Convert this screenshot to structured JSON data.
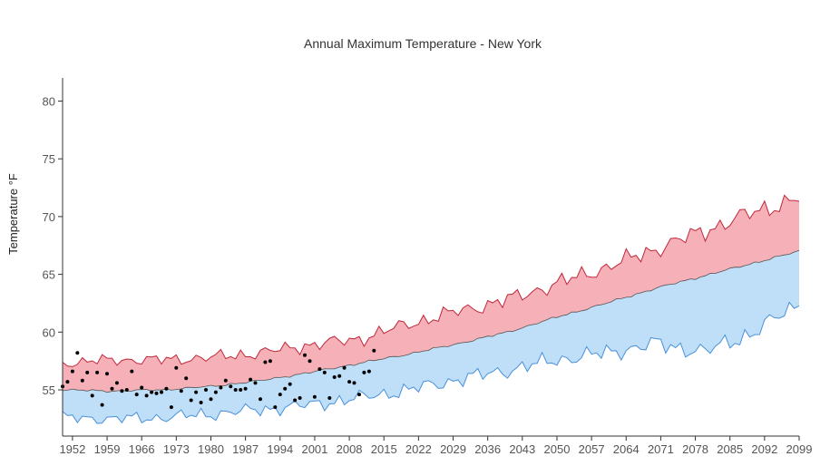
{
  "chart_data": {
    "type": "area",
    "title": "Annual Maximum Temperature - New York",
    "xlabel": "",
    "ylabel": "Temperature °F",
    "xlim": [
      1950,
      2099
    ],
    "ylim": [
      51,
      82
    ],
    "x_ticks": [
      1952,
      1959,
      1966,
      1973,
      1980,
      1987,
      1994,
      2001,
      2008,
      2015,
      2022,
      2029,
      2036,
      2043,
      2050,
      2057,
      2064,
      2071,
      2078,
      2085,
      2092,
      2099
    ],
    "y_ticks": [
      55,
      60,
      65,
      70,
      75,
      80
    ],
    "grid": false,
    "colors": {
      "upper_fill": "#f5b0b8",
      "upper_line": "#c0283a",
      "lower_fill": "#bfdff8",
      "lower_line": "#4a90d9",
      "observed": "#000000"
    },
    "upper_anchors": [
      [
        1950,
        57.3
      ],
      [
        1960,
        57.6
      ],
      [
        1970,
        57.6
      ],
      [
        1980,
        57.8
      ],
      [
        1990,
        58.2
      ],
      [
        2000,
        58.9
      ],
      [
        2010,
        59.4
      ],
      [
        2020,
        60.7
      ],
      [
        2030,
        61.8
      ],
      [
        2040,
        62.8
      ],
      [
        2050,
        64.2
      ],
      [
        2060,
        65.6
      ],
      [
        2070,
        67.2
      ],
      [
        2080,
        68.8
      ],
      [
        2090,
        70.4
      ],
      [
        2099,
        71.6
      ]
    ],
    "median_anchors": [
      [
        1950,
        55.0
      ],
      [
        1960,
        54.9
      ],
      [
        1970,
        55.0
      ],
      [
        1980,
        55.3
      ],
      [
        1990,
        55.8
      ],
      [
        2000,
        56.5
      ],
      [
        2010,
        57.3
      ],
      [
        2020,
        58.1
      ],
      [
        2030,
        59.0
      ],
      [
        2040,
        60.0
      ],
      [
        2050,
        61.3
      ],
      [
        2060,
        62.5
      ],
      [
        2070,
        63.8
      ],
      [
        2080,
        64.9
      ],
      [
        2090,
        66.0
      ],
      [
        2099,
        67.0
      ]
    ],
    "lower_anchors": [
      [
        1950,
        52.6
      ],
      [
        1960,
        52.5
      ],
      [
        1970,
        52.6
      ],
      [
        1980,
        52.9
      ],
      [
        1990,
        53.3
      ],
      [
        2000,
        53.7
      ],
      [
        2010,
        54.3
      ],
      [
        2020,
        55.0
      ],
      [
        2030,
        55.9
      ],
      [
        2040,
        56.7
      ],
      [
        2050,
        57.6
      ],
      [
        2060,
        58.2
      ],
      [
        2070,
        59.0
      ],
      [
        2080,
        58.3
      ],
      [
        2090,
        60.0
      ],
      [
        2099,
        62.5
      ]
    ],
    "observed": [
      [
        1950,
        55.3
      ],
      [
        1951,
        55.7
      ],
      [
        1952,
        56.6
      ],
      [
        1953,
        58.2
      ],
      [
        1954,
        55.8
      ],
      [
        1955,
        56.5
      ],
      [
        1956,
        54.5
      ],
      [
        1957,
        56.5
      ],
      [
        1958,
        53.7
      ],
      [
        1959,
        56.4
      ],
      [
        1960,
        55.1
      ],
      [
        1961,
        55.6
      ],
      [
        1962,
        54.9
      ],
      [
        1963,
        55.0
      ],
      [
        1964,
        56.6
      ],
      [
        1965,
        54.6
      ],
      [
        1966,
        55.2
      ],
      [
        1967,
        54.5
      ],
      [
        1968,
        54.8
      ],
      [
        1969,
        54.7
      ],
      [
        1970,
        54.8
      ],
      [
        1971,
        55.1
      ],
      [
        1972,
        53.5
      ],
      [
        1973,
        56.9
      ],
      [
        1974,
        54.9
      ],
      [
        1975,
        56.0
      ],
      [
        1976,
        54.1
      ],
      [
        1977,
        54.8
      ],
      [
        1978,
        53.9
      ],
      [
        1979,
        55.0
      ],
      [
        1980,
        54.2
      ],
      [
        1981,
        54.8
      ],
      [
        1982,
        55.2
      ],
      [
        1983,
        55.8
      ],
      [
        1984,
        55.3
      ],
      [
        1985,
        55.0
      ],
      [
        1986,
        55.0
      ],
      [
        1987,
        55.1
      ],
      [
        1988,
        55.9
      ],
      [
        1989,
        55.6
      ],
      [
        1990,
        54.2
      ],
      [
        1991,
        57.4
      ],
      [
        1992,
        57.5
      ],
      [
        1993,
        53.5
      ],
      [
        1994,
        54.6
      ],
      [
        1995,
        55.1
      ],
      [
        1996,
        55.5
      ],
      [
        1997,
        54.1
      ],
      [
        1998,
        54.3
      ],
      [
        1999,
        58.0
      ],
      [
        2000,
        57.5
      ],
      [
        2001,
        54.4
      ],
      [
        2002,
        56.8
      ],
      [
        2003,
        56.5
      ],
      [
        2004,
        54.3
      ],
      [
        2005,
        56.1
      ],
      [
        2006,
        56.2
      ],
      [
        2007,
        56.9
      ],
      [
        2008,
        55.7
      ],
      [
        2009,
        55.6
      ],
      [
        2010,
        54.6
      ],
      [
        2011,
        56.5
      ],
      [
        2012,
        56.6
      ],
      [
        2013,
        58.4
      ]
    ]
  }
}
